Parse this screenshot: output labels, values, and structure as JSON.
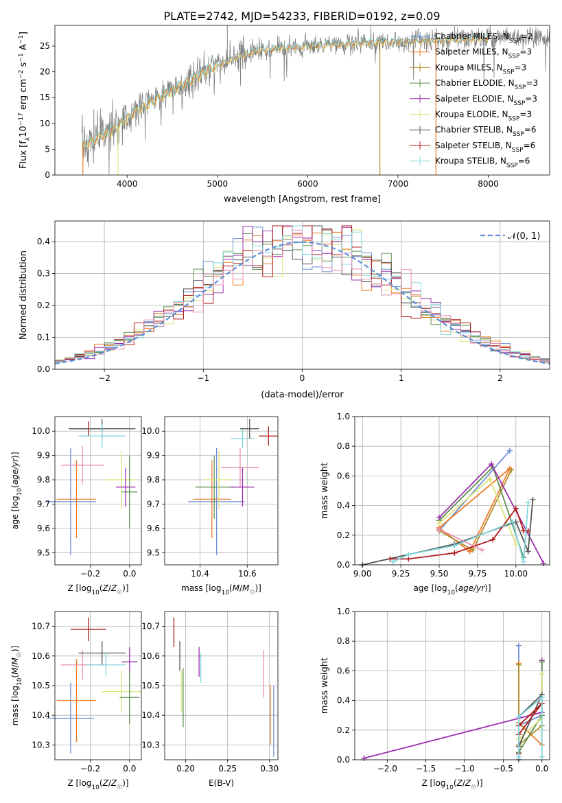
{
  "figure_title": "PLATE=2742, MJD=54233, FIBERID=0192, z=0.09",
  "colors": {
    "Chabrier MILES": "#6f8fd8",
    "Salpeter MILES": "#f07c28",
    "Kroupa MILES": "#b08f30",
    "Chabrier ELODIE": "#5f8f4f",
    "Salpeter ELODIE": "#9b2fae",
    "Kroupa ELODIE": "#dde37a",
    "Chabrier STELIB": "#555555",
    "Salpeter STELIB": "#b01818",
    "Kroupa STELIB": "#7fd6dc",
    "pink": "#e88fb4",
    "normal_curve": "#5b8fd6"
  },
  "chart_data": [
    {
      "id": "spectrum",
      "type": "line",
      "xlabel": "wavelength [Angstrom, rest frame]",
      "ylabel": "Flux [f_λ 10^-17 erg cm^-2 s^-1 A^-1]",
      "xlim": [
        3200,
        8680
      ],
      "ylim": [
        0,
        29
      ],
      "xticks": [
        "4000",
        "5000",
        "6000",
        "7000",
        "8000"
      ],
      "yticks": [
        "0",
        "5",
        "10",
        "15",
        "20",
        "25"
      ],
      "legend_position": "right",
      "legend": [
        {
          "model": "Chabrier MILES",
          "n": "2"
        },
        {
          "model": "Salpeter MILES",
          "n": "3"
        },
        {
          "model": "Kroupa MILES",
          "n": "3"
        },
        {
          "model": "Chabrier ELODIE",
          "n": "3"
        },
        {
          "model": "Salpeter ELODIE",
          "n": "3"
        },
        {
          "model": "Kroupa ELODIE",
          "n": "3"
        },
        {
          "model": "Chabrier STELIB",
          "n": "6"
        },
        {
          "model": "Salpeter STELIB",
          "n": "6"
        },
        {
          "model": "Kroupa STELIB",
          "n": "6"
        }
      ],
      "continuum": {
        "x": [
          3500,
          3600,
          3700,
          3800,
          3900,
          4000,
          4100,
          4200,
          4300,
          4400,
          4500,
          4600,
          4700,
          4800,
          4900,
          5000,
          5100,
          5200,
          5300,
          5400,
          5500,
          5600,
          5800,
          6000,
          6200,
          6400,
          6600,
          6800,
          7000,
          7200,
          7500,
          7800,
          8000,
          8300,
          8500,
          8680
        ],
        "y": [
          5.5,
          6.5,
          7.5,
          8.2,
          9.5,
          11.0,
          12.5,
          13.5,
          14.5,
          15.5,
          16.5,
          17.5,
          18.3,
          19.3,
          20.5,
          21.2,
          22.0,
          22.8,
          23.3,
          24.0,
          24.3,
          24.5,
          24.8,
          25.0,
          25.2,
          25.4,
          25.6,
          25.8,
          25.9,
          26.0,
          26.2,
          26.5,
          26.6,
          26.8,
          26.7,
          26.6
        ]
      }
    },
    {
      "id": "residuals",
      "type": "histogram",
      "xlabel": "(data-model)/error",
      "ylabel": "Normed distribution",
      "xlim": [
        -2.5,
        2.5
      ],
      "ylim": [
        0,
        0.465
      ],
      "xticks": [
        "−2",
        "−1",
        "0",
        "1",
        "2"
      ],
      "yticks": [
        "0.0",
        "0.1",
        "0.2",
        "0.3",
        "0.4"
      ],
      "curve_label": "𝒩(0, 1)",
      "bin_width": 0.1
    },
    {
      "id": "age-vs-Z",
      "type": "errorbar",
      "xlabel": "Z [log10(Z/Z☉)]",
      "ylabel": "age [log10(age/yr)]",
      "xlim": [
        -0.38,
        0.06
      ],
      "ylim": [
        9.45,
        10.06
      ],
      "xticks": [
        "−0.2",
        "0.0"
      ],
      "xtick_values": [
        -0.2,
        0.0
      ],
      "yticks": [
        "9.5",
        "9.6",
        "9.7",
        "9.8",
        "9.9",
        "10.0"
      ],
      "ytick_values": [
        9.5,
        9.6,
        9.7,
        9.8,
        9.9,
        10.0
      ],
      "points": [
        {
          "c": "Chabrier MILES",
          "x": -0.3,
          "xe": 0.13,
          "y": 9.71,
          "ye": 0.22
        },
        {
          "c": "Salpeter MILES",
          "x": -0.27,
          "xe": 0.1,
          "y": 9.72,
          "ye": 0.16
        },
        {
          "c": "pink",
          "x": -0.24,
          "xe": 0.11,
          "y": 9.86,
          "ye": 0.08
        },
        {
          "c": "Salpeter STELIB",
          "x": -0.21,
          "xe": 0.09,
          "y": 10.01,
          "ye": 0.03
        },
        {
          "c": "Chabrier STELIB",
          "x": -0.14,
          "xe": 0.17,
          "y": 10.01,
          "ye": 0.04
        },
        {
          "c": "Kroupa STELIB",
          "x": -0.14,
          "xe": 0.12,
          "y": 9.98,
          "ye": 0.05
        },
        {
          "c": "Kroupa ELODIE",
          "x": -0.04,
          "xe": 0.08,
          "y": 9.8,
          "ye": 0.12
        },
        {
          "c": "Salpeter ELODIE",
          "x": -0.02,
          "xe": 0.05,
          "y": 9.77,
          "ye": 0.08
        },
        {
          "c": "Chabrier ELODIE",
          "x": 0.0,
          "xe": 0.04,
          "y": 9.75,
          "ye": 0.15
        }
      ]
    },
    {
      "id": "age-vs-mass",
      "type": "errorbar",
      "xlabel": "mass [log10(M/M☉)]",
      "ylabel": "",
      "xlim": [
        10.25,
        10.73
      ],
      "ylim": [
        9.45,
        10.06
      ],
      "xticks": [
        "10.4",
        "10.6"
      ],
      "xtick_values": [
        10.4,
        10.6
      ],
      "yticks": [
        "9.5",
        "9.6",
        "9.7",
        "9.8",
        "9.9",
        "10.0"
      ],
      "ytick_values": [
        9.5,
        9.6,
        9.7,
        9.8,
        9.9,
        10.0
      ],
      "points": [
        {
          "c": "Chabrier MILES",
          "x": 10.47,
          "xe": 0.12,
          "y": 9.71,
          "ye": 0.22
        },
        {
          "c": "Salpeter MILES",
          "x": 10.45,
          "xe": 0.08,
          "y": 9.72,
          "ye": 0.16
        },
        {
          "c": "Chabrier ELODIE",
          "x": 10.46,
          "xe": 0.08,
          "y": 9.77,
          "ye": 0.13
        },
        {
          "c": "Kroupa ELODIE",
          "x": 10.48,
          "xe": 0.06,
          "y": 9.8,
          "ye": 0.12
        },
        {
          "c": "pink",
          "x": 10.57,
          "xe": 0.08,
          "y": 9.85,
          "ye": 0.08
        },
        {
          "c": "Salpeter ELODIE",
          "x": 10.58,
          "xe": 0.05,
          "y": 9.77,
          "ye": 0.08
        },
        {
          "c": "Kroupa STELIB",
          "x": 10.58,
          "xe": 0.05,
          "y": 9.97,
          "ye": 0.04
        },
        {
          "c": "Chabrier STELIB",
          "x": 10.61,
          "xe": 0.04,
          "y": 10.01,
          "ye": 0.04
        },
        {
          "c": "Salpeter STELIB",
          "x": 10.69,
          "xe": 0.04,
          "y": 9.98,
          "ye": 0.04
        }
      ]
    },
    {
      "id": "weights-vs-age",
      "type": "line",
      "xlabel": "age [log10(age/yr)]",
      "ylabel": "mass weight",
      "xlim": [
        8.95,
        10.22
      ],
      "ylim": [
        0,
        1
      ],
      "xticks": [
        "9.00",
        "9.25",
        "9.50",
        "9.75",
        "10.00"
      ],
      "xtick_values": [
        9.0,
        9.25,
        9.5,
        9.75,
        10.0
      ],
      "yticks": [
        "0.0",
        "0.2",
        "0.4",
        "0.6",
        "0.8",
        "1.0"
      ],
      "ytick_values": [
        0,
        0.2,
        0.4,
        0.6,
        0.8,
        1.0
      ],
      "series": [
        {
          "c": "Chabrier MILES",
          "x": [
            9.5,
            9.96
          ],
          "y": [
            0.23,
            0.77
          ]
        },
        {
          "c": "Salpeter MILES",
          "x": [
            9.5,
            9.7,
            9.96,
            9.5
          ],
          "y": [
            0.25,
            0.09,
            0.65,
            0.25
          ]
        },
        {
          "c": "Kroupa MILES",
          "x": [
            9.5,
            9.72,
            9.97
          ],
          "y": [
            0.23,
            0.1,
            0.64
          ]
        },
        {
          "c": "Chabrier ELODIE",
          "x": [
            9.5,
            9.85,
            10.05
          ],
          "y": [
            0.3,
            0.66,
            0.05
          ]
        },
        {
          "c": "Salpeter ELODIE",
          "x": [
            9.5,
            9.84,
            10.18
          ],
          "y": [
            0.32,
            0.68,
            0.01
          ]
        },
        {
          "c": "Kroupa ELODIE",
          "x": [
            9.5,
            9.83,
            10.0
          ],
          "y": [
            0.28,
            0.58,
            0.14
          ]
        },
        {
          "c": "Chabrier STELIB",
          "x": [
            9.0,
            9.3,
            9.6,
            10.0,
            10.08,
            10.11
          ],
          "y": [
            0.0,
            0.07,
            0.14,
            0.29,
            0.09,
            0.44
          ]
        },
        {
          "c": "Salpeter STELIB",
          "x": [
            9.18,
            9.3,
            9.6,
            9.85,
            10.0,
            10.05,
            10.08
          ],
          "y": [
            0.04,
            0.04,
            0.08,
            0.17,
            0.38,
            0.23,
            0.23
          ]
        },
        {
          "c": "Kroupa STELIB",
          "x": [
            9.2,
            9.3,
            9.6,
            9.98,
            10.05,
            10.08
          ],
          "y": [
            0.02,
            0.07,
            0.13,
            0.29,
            0.02,
            0.42
          ]
        },
        {
          "c": "pink",
          "x": [
            9.5,
            9.78
          ],
          "y": [
            0.24,
            0.1
          ]
        }
      ]
    },
    {
      "id": "mass-vs-Z",
      "type": "errorbar",
      "xlabel": "Z [log10(Z/Z☉)]",
      "ylabel": "mass [log10(M/M☉)]",
      "xlim": [
        -0.38,
        0.06
      ],
      "ylim": [
        10.25,
        10.75
      ],
      "xticks": [
        "−0.2",
        "0.0"
      ],
      "xtick_values": [
        -0.2,
        0.0
      ],
      "yticks": [
        "10.3",
        "10.4",
        "10.5",
        "10.6",
        "10.7"
      ],
      "ytick_values": [
        10.3,
        10.4,
        10.5,
        10.6,
        10.7
      ],
      "points": [
        {
          "c": "Chabrier MILES",
          "x": -0.3,
          "xe": 0.12,
          "y": 10.39,
          "ye": 0.12
        },
        {
          "c": "Salpeter MILES",
          "x": -0.27,
          "xe": 0.1,
          "y": 10.45,
          "ye": 0.14
        },
        {
          "c": "pink",
          "x": -0.24,
          "xe": 0.11,
          "y": 10.57,
          "ye": 0.05
        },
        {
          "c": "Salpeter STELIB",
          "x": -0.21,
          "xe": 0.09,
          "y": 10.69,
          "ye": 0.04
        },
        {
          "c": "Chabrier STELIB",
          "x": -0.14,
          "xe": 0.12,
          "y": 10.61,
          "ye": 0.04
        },
        {
          "c": "Kroupa STELIB",
          "x": -0.12,
          "xe": 0.1,
          "y": 10.57,
          "ye": 0.04
        },
        {
          "c": "Salpeter ELODIE",
          "x": 0.0,
          "xe": 0.04,
          "y": 10.58,
          "ye": 0.05
        },
        {
          "c": "Kroupa ELODIE",
          "x": -0.04,
          "xe": 0.1,
          "y": 10.48,
          "ye": 0.07
        },
        {
          "c": "Chabrier ELODIE",
          "x": 0.0,
          "xe": 0.05,
          "y": 10.46,
          "ye": 0.09
        }
      ]
    },
    {
      "id": "mass-vs-ebv",
      "type": "errorbar",
      "xlabel": "E(B-V)",
      "ylabel": "",
      "xlim": [
        0.175,
        0.31
      ],
      "ylim": [
        10.25,
        10.75
      ],
      "xticks": [
        "0.20",
        "0.25",
        "0.30"
      ],
      "xtick_values": [
        0.2,
        0.25,
        0.3
      ],
      "yticks": [
        "10.3",
        "10.4",
        "10.5",
        "10.6",
        "10.7"
      ],
      "ytick_values": [
        10.3,
        10.4,
        10.5,
        10.6,
        10.7
      ],
      "points": [
        {
          "c": "Salpeter STELIB",
          "x": 0.186,
          "xe": 0,
          "y": 10.68,
          "ye": 0.05
        },
        {
          "c": "Chabrier STELIB",
          "x": 0.193,
          "xe": 0,
          "y": 10.6,
          "ye": 0.05
        },
        {
          "c": "Kroupa ELODIE",
          "x": 0.195,
          "xe": 0,
          "y": 10.48,
          "ye": 0.07
        },
        {
          "c": "Chabrier ELODIE",
          "x": 0.197,
          "xe": 0,
          "y": 10.46,
          "ye": 0.1
        },
        {
          "c": "Salpeter ELODIE",
          "x": 0.216,
          "xe": 0,
          "y": 10.58,
          "ye": 0.05
        },
        {
          "c": "Kroupa STELIB",
          "x": 0.218,
          "xe": 0,
          "y": 10.56,
          "ye": 0.05
        },
        {
          "c": "pink",
          "x": 0.293,
          "xe": 0,
          "y": 10.54,
          "ye": 0.08
        },
        {
          "c": "Salpeter MILES",
          "x": 0.301,
          "xe": 0,
          "y": 10.4,
          "ye": 0.1
        },
        {
          "c": "Chabrier MILES",
          "x": 0.305,
          "xe": 0,
          "y": 10.38,
          "ye": 0.12
        }
      ]
    },
    {
      "id": "weights-vs-Z",
      "type": "line",
      "xlabel": "Z [log10(Z/Z☉)]",
      "ylabel": "mass weight",
      "xlim": [
        -2.42,
        0.1
      ],
      "ylim": [
        0,
        1
      ],
      "xticks": [
        "−2.0",
        "−1.5",
        "−1.0",
        "−0.5",
        "0.0"
      ],
      "xtick_values": [
        -2.0,
        -1.5,
        -1.0,
        -0.5,
        0.0
      ],
      "yticks": [
        "0.0",
        "0.2",
        "0.4",
        "0.6",
        "0.8",
        "1.0"
      ],
      "ytick_values": [
        0,
        0.2,
        0.4,
        0.6,
        0.8,
        1.0
      ],
      "series": [
        {
          "c": "Salpeter ELODIE",
          "x": [
            -2.3,
            0.0,
            0.0
          ],
          "y": [
            0.01,
            0.32,
            0.67
          ]
        },
        {
          "c": "Chabrier MILES",
          "x": [
            -0.3,
            -0.3,
            0.0
          ],
          "y": [
            0.77,
            0.23,
            0.3
          ]
        },
        {
          "c": "Salpeter MILES",
          "x": [
            -0.3,
            -0.3,
            0.0,
            0.0
          ],
          "y": [
            0.65,
            0.25,
            0.1,
            0.3
          ]
        },
        {
          "c": "Kroupa MILES",
          "x": [
            -0.3,
            -0.3,
            0.0
          ],
          "y": [
            0.64,
            0.1,
            0.23
          ]
        },
        {
          "c": "Chabrier ELODIE",
          "x": [
            -0.3,
            0.0,
            0.0
          ],
          "y": [
            0.05,
            0.3,
            0.66
          ]
        },
        {
          "c": "Kroupa ELODIE",
          "x": [
            -0.3,
            0.0,
            0.0
          ],
          "y": [
            0.14,
            0.28,
            0.58
          ]
        },
        {
          "c": "Chabrier STELIB",
          "x": [
            -0.3,
            -0.3,
            0.0,
            -0.3
          ],
          "y": [
            0.0,
            0.09,
            0.44,
            0.29
          ]
        },
        {
          "c": "Salpeter STELIB",
          "x": [
            -0.3,
            -0.3,
            0.0,
            -0.3
          ],
          "y": [
            0.04,
            0.23,
            0.38,
            0.17
          ]
        },
        {
          "c": "Kroupa STELIB",
          "x": [
            -0.3,
            -0.3,
            0.0,
            0.0
          ],
          "y": [
            0.02,
            0.29,
            0.42,
            0.02
          ]
        }
      ]
    }
  ]
}
